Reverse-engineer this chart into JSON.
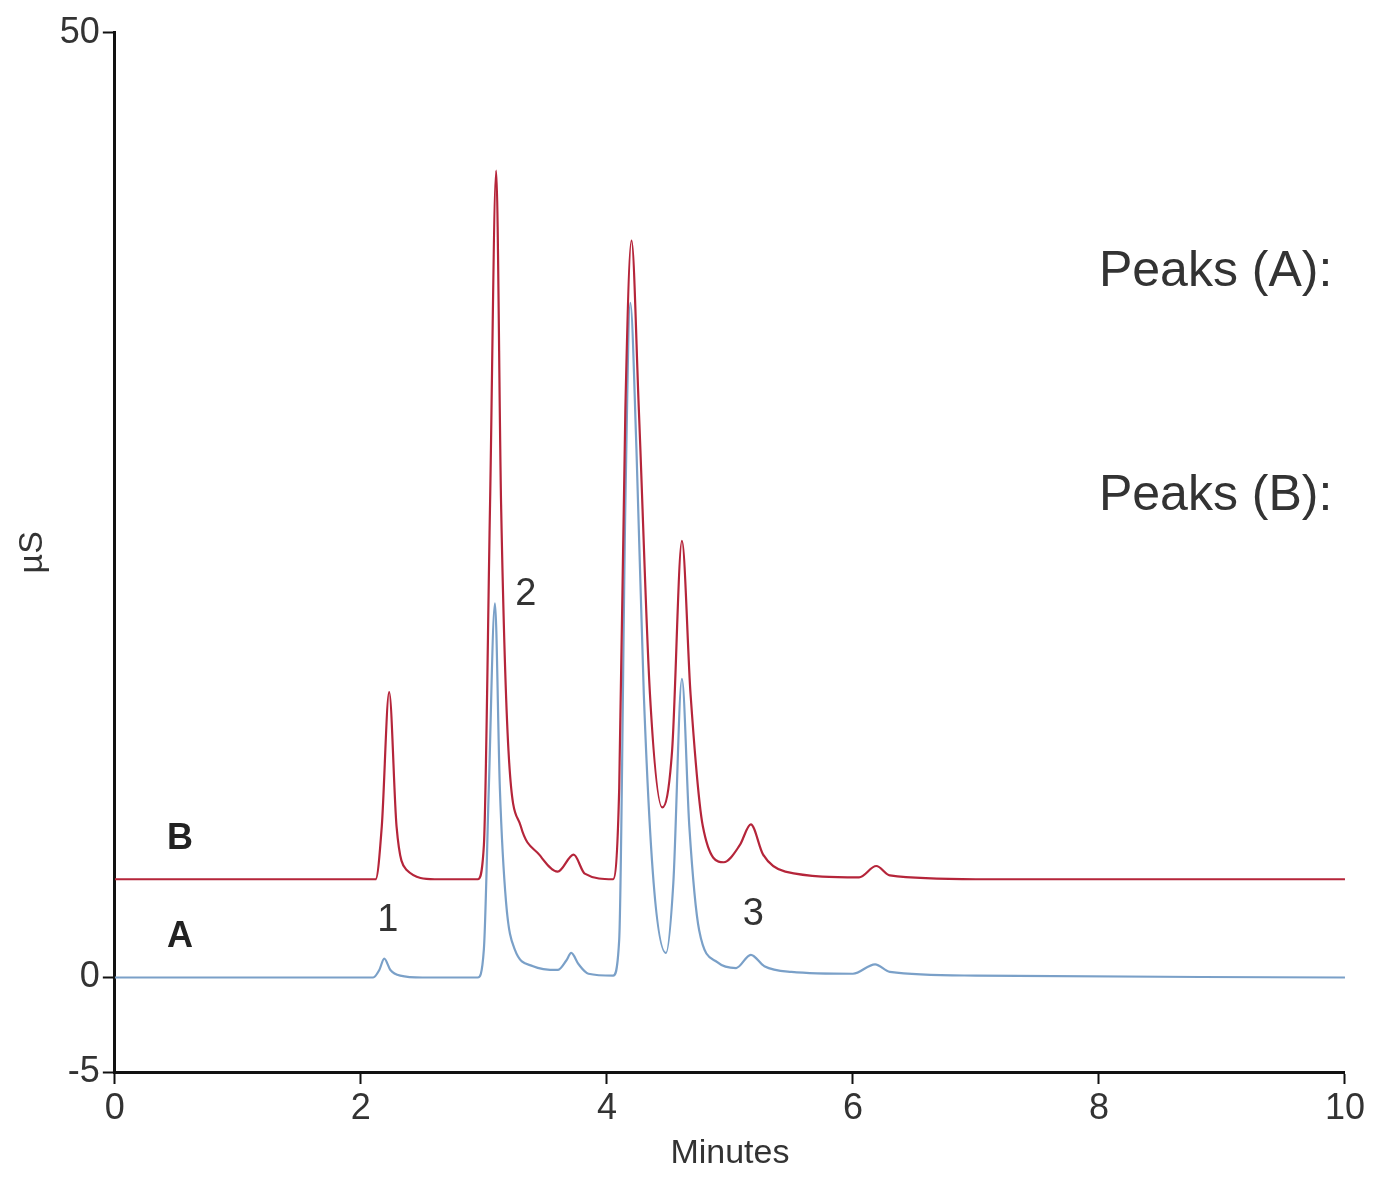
{
  "chart_data": {
    "type": "line",
    "xlabel": "Minutes",
    "ylabel": "µS",
    "xlim": [
      0,
      10
    ],
    "xticks": [
      0,
      2,
      4,
      6,
      8,
      10
    ],
    "ylim": [
      -5,
      50
    ],
    "yticks": [
      50,
      0,
      -5
    ],
    "grid": false,
    "legend": false,
    "marker": "none",
    "line_style": "solid",
    "series": [
      {
        "name": "B",
        "color": "#b5253a",
        "x": [
          0,
          2.12,
          2.17,
          2.23,
          2.29,
          2.37,
          2.6,
          2.95,
          3.0,
          3.05,
          3.1,
          3.14,
          3.2,
          3.3,
          3.45,
          3.6,
          3.73,
          3.82,
          4.05,
          4.1,
          4.15,
          4.2,
          4.26,
          4.35,
          4.45,
          4.53,
          4.61,
          4.68,
          4.78,
          4.95,
          5.08,
          5.17,
          5.27,
          5.45,
          6.05,
          6.19,
          6.3,
          7,
          10
        ],
        "values": [
          5.2,
          5.2,
          8,
          15.1,
          8,
          5.7,
          5.2,
          5.2,
          7,
          25,
          42.7,
          25,
          12,
          8,
          6.5,
          5.6,
          6.5,
          5.5,
          5.2,
          10,
          30,
          39,
          30,
          15,
          9,
          12,
          23.1,
          15,
          8,
          6.1,
          7,
          8.1,
          6.5,
          5.6,
          5.3,
          5.9,
          5.4,
          5.2,
          5.2
        ]
      },
      {
        "name": "A",
        "color": "#7aa0c8",
        "x": [
          0,
          2.1,
          2.15,
          2.19,
          2.24,
          2.32,
          2.5,
          2.95,
          3.0,
          3.04,
          3.09,
          3.13,
          3.18,
          3.25,
          3.4,
          3.6,
          3.67,
          3.71,
          3.77,
          3.85,
          4.05,
          4.1,
          4.15,
          4.19,
          4.24,
          4.3,
          4.38,
          4.48,
          4.54,
          4.61,
          4.67,
          4.75,
          4.9,
          5.05,
          5.17,
          5.28,
          5.5,
          6.0,
          6.18,
          6.3,
          7,
          10
        ],
        "values": [
          0,
          0,
          0.4,
          1.0,
          0.4,
          0.1,
          0,
          0,
          1.5,
          10,
          19.8,
          10,
          4,
          1.5,
          0.6,
          0.4,
          0.9,
          1.3,
          0.7,
          0.2,
          0.1,
          2,
          25,
          35.7,
          28,
          15,
          5,
          1.3,
          5,
          15.8,
          8,
          2.5,
          0.8,
          0.5,
          1.2,
          0.6,
          0.3,
          0.2,
          0.7,
          0.3,
          0.1,
          0
        ]
      }
    ],
    "annotations": [
      "1",
      "2",
      "3",
      "Peaks (A):",
      "Peaks (B):"
    ]
  }
}
